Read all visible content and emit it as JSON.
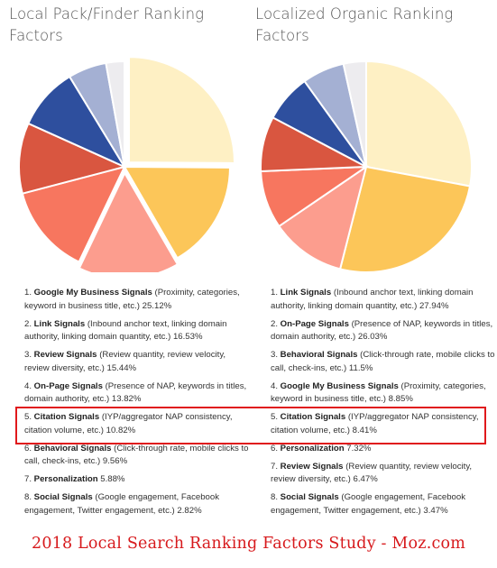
{
  "chart_data": [
    {
      "type": "pie",
      "title": "Local Pack/Finder Ranking Factors",
      "categories": [
        "Google My Business Signals",
        "Link Signals",
        "Review Signals",
        "On-Page Signals",
        "Citation Signals",
        "Behavioral Signals",
        "Personalization",
        "Social Signals"
      ],
      "values": [
        25.12,
        16.53,
        15.44,
        13.82,
        10.82,
        9.56,
        5.88,
        2.82
      ],
      "colors": [
        "#fef0c4",
        "#fcc659",
        "#fc9d8e",
        "#f7765f",
        "#d95640",
        "#2e4f9e",
        "#a4b0d3",
        "#edecef"
      ],
      "exploded_slices": [
        0,
        2
      ],
      "legend": [
        {
          "num": "1.",
          "name": "Google My Business Signals",
          "desc": "(Proximity, categories, keyword in business title, etc.)",
          "pct": "25.12%"
        },
        {
          "num": "2.",
          "name": "Link Signals",
          "desc": "(Inbound anchor text, linking domain authority, linking domain quantity, etc.)",
          "pct": "16.53%"
        },
        {
          "num": "3.",
          "name": "Review Signals",
          "desc": "(Review quantity, review velocity, review diversity, etc.)",
          "pct": "15.44%"
        },
        {
          "num": "4.",
          "name": "On-Page Signals",
          "desc": "(Presence of NAP, keywords in titles, domain authority, etc.)",
          "pct": "13.82%"
        },
        {
          "num": "5.",
          "name": "Citation Signals",
          "desc": "(IYP/aggregator NAP consistency, citation volume, etc.)",
          "pct": "10.82%"
        },
        {
          "num": "6.",
          "name": "Behavioral Signals",
          "desc": "(Click-through rate, mobile clicks to call, check-ins, etc.)",
          "pct": "9.56%"
        },
        {
          "num": "7.",
          "name": "Personalization",
          "desc": "",
          "pct": "5.88%"
        },
        {
          "num": "8.",
          "name": "Social Signals",
          "desc": "(Google engagement, Facebook engagement, Twitter engagement, etc.)",
          "pct": "2.82%"
        }
      ]
    },
    {
      "type": "pie",
      "title": "Localized Organic Ranking Factors",
      "categories": [
        "Link Signals",
        "On-Page Signals",
        "Behavioral Signals",
        "Google My Business Signals",
        "Citation Signals",
        "Personalization",
        "Review Signals",
        "Social Signals"
      ],
      "values": [
        27.94,
        26.03,
        11.5,
        8.85,
        8.41,
        7.32,
        6.47,
        3.47
      ],
      "colors": [
        "#fef0c4",
        "#fcc659",
        "#fc9d8e",
        "#f7765f",
        "#d95640",
        "#2e4f9e",
        "#a4b0d3",
        "#edecef"
      ],
      "exploded_slices": [],
      "legend": [
        {
          "num": "1.",
          "name": "Link Signals",
          "desc": "(Inbound anchor text, linking domain authority, linking domain quantity, etc.)",
          "pct": "27.94%"
        },
        {
          "num": "2.",
          "name": "On-Page Signals",
          "desc": "(Presence of NAP, keywords in titles, domain authority, etc.)",
          "pct": "26.03%"
        },
        {
          "num": "3.",
          "name": "Behavioral Signals",
          "desc": "(Click-through rate, mobile clicks to call, check-ins, etc.)",
          "pct": "11.5%"
        },
        {
          "num": "4.",
          "name": "Google My Business Signals",
          "desc": "(Proximity, categories, keyword in business title, etc.)",
          "pct": "8.85%"
        },
        {
          "num": "5.",
          "name": "Citation Signals",
          "desc": "(IYP/aggregator NAP consistency, citation volume, etc.)",
          "pct": "8.41%"
        },
        {
          "num": "6.",
          "name": "Personalization",
          "desc": "",
          "pct": "7.32%"
        },
        {
          "num": "7.",
          "name": "Review Signals",
          "desc": "(Review quantity, review velocity, review diversity, etc.)",
          "pct": "6.47%"
        },
        {
          "num": "8.",
          "name": "Social Signals",
          "desc": "(Google engagement, Facebook engagement, Twitter engagement, etc.)",
          "pct": "3.47%"
        }
      ]
    }
  ],
  "highlight": {
    "item": "Citation Signals",
    "color": "#e0191c"
  },
  "footer": {
    "text": "2018 Local Search Ranking Factors Study - Moz.com",
    "color": "#d7191c"
  }
}
